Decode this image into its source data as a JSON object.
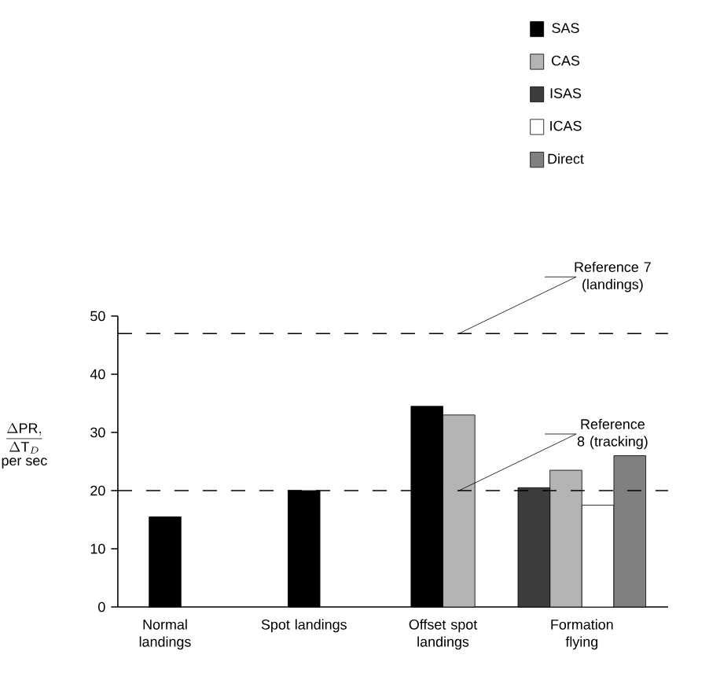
{
  "chart_data": {
    "type": "bar",
    "ylabel": "\\begin{array}{c}\\dfrac{\\Delta \\mathrm{PR},}{\\Delta \\mathrm{T}_{D}}\\\\ \\text{per sec}\\end{array}",
    "categories": [
      "Normal landings",
      "Spot landings",
      "Offset spot landings",
      "Formation flying"
    ],
    "series": [
      {
        "name": "SAS",
        "color": "#000000",
        "values": [
          15.5,
          20,
          34.5,
          null
        ]
      },
      {
        "name": "CAS",
        "color": "#b4b4b4",
        "values": [
          null,
          null,
          33,
          23.5
        ]
      },
      {
        "name": "ISAS",
        "color": "#3c3c3c",
        "values": [
          null,
          null,
          null,
          20.5
        ]
      },
      {
        "name": "ICAS",
        "color": "#ffffff",
        "values": [
          null,
          null,
          null,
          17.5
        ]
      },
      {
        "name": "Direct",
        "color": "#808080",
        "values": [
          null,
          null,
          null,
          26
        ]
      }
    ],
    "ylim": [
      0,
      50
    ],
    "yticks": [
      0,
      10,
      20,
      30,
      40,
      50
    ],
    "ref_lines": [
      {
        "axis": "y",
        "value": 47,
        "label": "Reference 7 (landings)",
        "line_style": "dashed"
      },
      {
        "axis": "y",
        "value": 20,
        "label": "Reference 8 (tracking)",
        "line_style": "dashed"
      }
    ],
    "grid": false,
    "legend": "top right"
  }
}
